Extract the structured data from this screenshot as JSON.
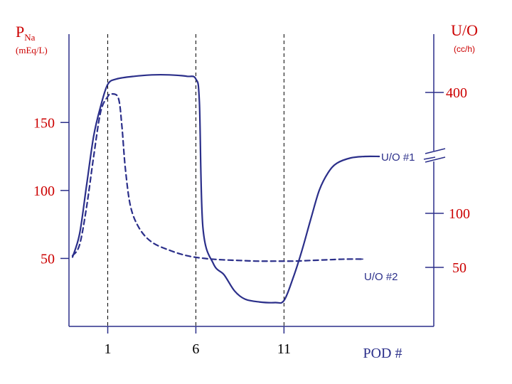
{
  "chart_data": {
    "type": "line",
    "title": "",
    "left_axis": {
      "label_main": "P",
      "label_sub": "Na",
      "unit": "(mEq/L)",
      "ticks": [
        50,
        100,
        150
      ],
      "ylim": [
        0,
        215
      ]
    },
    "right_axis": {
      "label": "U/O",
      "unit": "(cc/h)",
      "lower_ticks": [
        50,
        100
      ],
      "upper_ticks": [
        400
      ],
      "break_between": [
        100,
        400
      ]
    },
    "x_axis": {
      "label": "POD #",
      "ticks": [
        1,
        6,
        11
      ],
      "xlim": [
        -1.2,
        19.5
      ],
      "guide_lines_at": [
        1,
        6,
        11
      ]
    },
    "series": [
      {
        "name": "U/O #1",
        "style": "solid",
        "x": [
          -1.0,
          -0.6,
          -0.2,
          0.2,
          0.6,
          1.0,
          1.5,
          2.5,
          3.5,
          4.5,
          5.5,
          6.0,
          6.2,
          6.4,
          7.0,
          7.6,
          8.2,
          8.8,
          9.6,
          10.5,
          11.0,
          11.5,
          12.0,
          12.5,
          13.0,
          13.5,
          14.0,
          14.8,
          15.6,
          16.4
        ],
        "y": [
          51,
          68,
          104,
          140,
          162,
          178,
          182,
          184,
          185,
          185,
          184,
          182,
          165,
          73,
          46,
          38,
          26,
          20,
          18,
          17.5,
          19,
          35,
          55,
          78,
          100,
          113,
          120,
          124,
          125,
          125
        ]
      },
      {
        "name": "U/O #2",
        "style": "dashed",
        "x": [
          -1.0,
          -0.6,
          -0.2,
          0.2,
          0.6,
          1.0,
          1.2,
          1.6,
          1.8,
          2.0,
          2.3,
          2.8,
          3.5,
          4.5,
          5.5,
          6.5,
          7.5,
          8.5,
          9.5,
          10.5,
          11.5,
          12.5,
          13.5,
          14.5,
          15.5
        ],
        "y": [
          52,
          60,
          88,
          125,
          158,
          169,
          171,
          168,
          148,
          116,
          88,
          72,
          62,
          56,
          52,
          50,
          49,
          48.5,
          48,
          48,
          48,
          48.5,
          49,
          49.5,
          49.5
        ]
      }
    ]
  }
}
